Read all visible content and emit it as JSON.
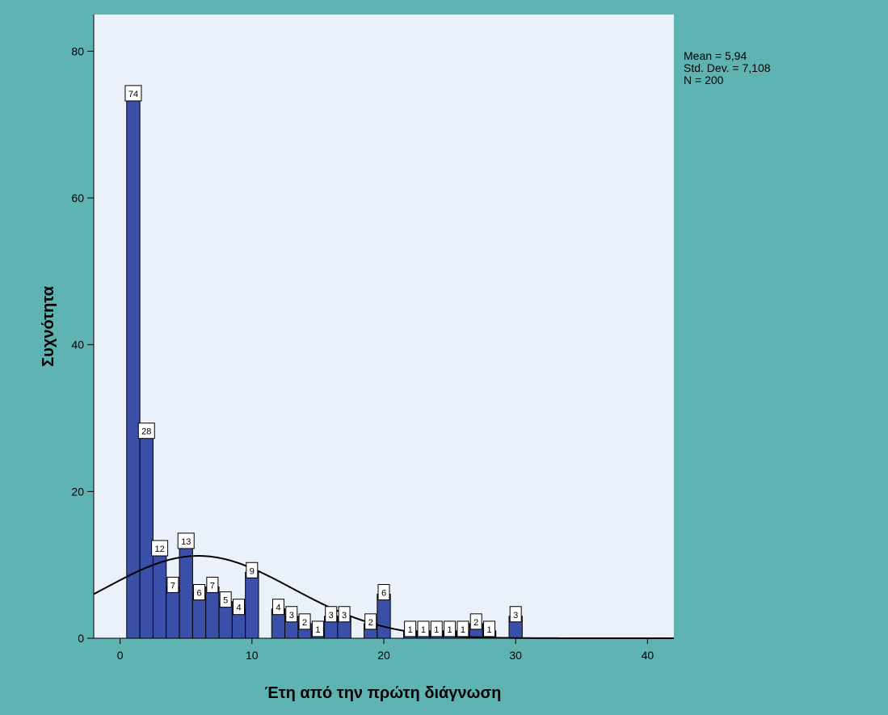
{
  "chart_data": {
    "type": "bar",
    "xlabel": "Έτη από την πρώτη διάγνωση",
    "ylabel": "Συχνότητα",
    "xlim": [
      -2,
      42
    ],
    "ylim": [
      0,
      85
    ],
    "xticks": [
      "0",
      "10",
      "20",
      "30",
      "40"
    ],
    "yticks": [
      "0",
      "20",
      "40",
      "60",
      "80"
    ],
    "grid": false,
    "bar_color": "#3a4fa8",
    "plot_background": "#eaf1fa",
    "outer_background": "#5fb3b3",
    "bins": [
      {
        "x": 1,
        "value": 74
      },
      {
        "x": 2,
        "value": 28
      },
      {
        "x": 3,
        "value": 12
      },
      {
        "x": 4,
        "value": 7
      },
      {
        "x": 5,
        "value": 13
      },
      {
        "x": 6,
        "value": 6
      },
      {
        "x": 7,
        "value": 7
      },
      {
        "x": 8,
        "value": 5
      },
      {
        "x": 9,
        "value": 4
      },
      {
        "x": 10,
        "value": 9
      },
      {
        "x": 12,
        "value": 4
      },
      {
        "x": 13,
        "value": 3
      },
      {
        "x": 14,
        "value": 2
      },
      {
        "x": 15,
        "value": 1
      },
      {
        "x": 16,
        "value": 3
      },
      {
        "x": 17,
        "value": 3
      },
      {
        "x": 19,
        "value": 2
      },
      {
        "x": 20,
        "value": 6
      },
      {
        "x": 22,
        "value": 1
      },
      {
        "x": 23,
        "value": 1
      },
      {
        "x": 24,
        "value": 1
      },
      {
        "x": 25,
        "value": 1
      },
      {
        "x": 26,
        "value": 1
      },
      {
        "x": 27,
        "value": 2
      },
      {
        "x": 28,
        "value": 1
      },
      {
        "x": 30,
        "value": 3
      }
    ],
    "normal_curve": {
      "mean": 5.94,
      "sd": 7.108,
      "n": 200,
      "bin_width": 1
    },
    "stats": {
      "mean": "Mean = 5,94",
      "sd": "Std. Dev. = 7,108",
      "n": "N = 200"
    }
  }
}
